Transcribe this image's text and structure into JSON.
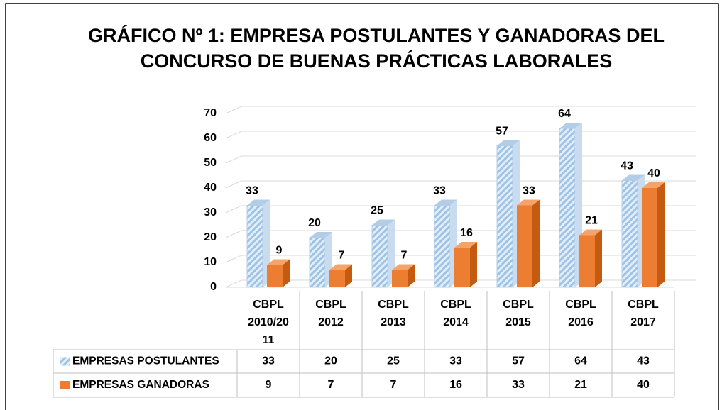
{
  "chart_data": {
    "type": "bar3d",
    "title": "GRÁFICO Nº 1: EMPRESA POSTULANTES Y GANADORAS DEL CONCURSO DE BUENAS PRÁCTICAS LABORALES",
    "categories": [
      "CBPL 2010/2011",
      "CBPL 2012",
      "CBPL 2013",
      "CBPL 2014",
      "CBPL 2015",
      "CBPL 2016",
      "CBPL 2017"
    ],
    "series": [
      {
        "name": "EMPRESAS POSTULANTES",
        "color": "#9dc3e6",
        "values": [
          33,
          20,
          25,
          33,
          57,
          64,
          43
        ]
      },
      {
        "name": "EMPRESAS GANADORAS",
        "color": "#ed7d31",
        "values": [
          9,
          7,
          7,
          16,
          33,
          21,
          40
        ]
      }
    ],
    "ylim": [
      0,
      70
    ],
    "yticks": [
      0,
      10,
      20,
      30,
      40,
      50,
      60,
      70
    ],
    "grid": true
  }
}
